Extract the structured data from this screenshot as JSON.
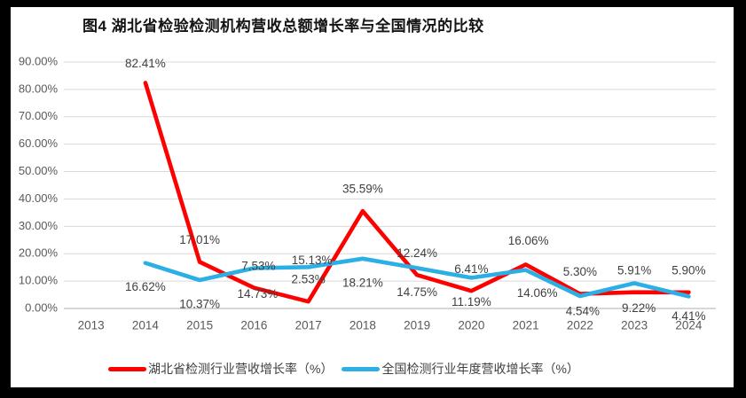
{
  "title": "图4 湖北省检验检测机构营收总额增长率与全国情况的比较",
  "legend": {
    "items": [
      {
        "label": "湖北省检测行业营收增长率（%）",
        "color": "#fe0000"
      },
      {
        "label": "全国检测行业年度营收增长率（%）",
        "color": "#2bafe4"
      }
    ]
  },
  "colors": {
    "hubei_line": "#fe0000",
    "national_line": "#2bafe4",
    "gridline": "#d9d9d9",
    "axis_line": "#bfbfbf",
    "axis_text": "#595959",
    "data_label": "#3f3f3f",
    "title_text": "#141414",
    "frame": "#000000",
    "background": "#ffffff"
  },
  "chart_data": {
    "type": "line",
    "title": "图4 湖北省检验检测机构营收总额增长率与全国情况的比较",
    "categories": [
      "2013",
      "2014",
      "2015",
      "2016",
      "2017",
      "2018",
      "2019",
      "2020",
      "2021",
      "2022",
      "2023",
      "2024"
    ],
    "series": [
      {
        "name": "湖北省检测行业营收增长率（%）",
        "color": "#fe0000",
        "values": [
          null,
          82.41,
          17.01,
          7.53,
          2.53,
          35.59,
          12.24,
          6.41,
          16.06,
          5.3,
          5.91,
          5.9
        ],
        "labels": [
          null,
          "82.41%",
          "17.01%",
          "7.53%",
          "2.53%",
          "35.59%",
          "12.24%",
          "6.41%",
          "16.06%",
          "5.30%",
          "5.91%",
          "5.90%"
        ]
      },
      {
        "name": "全国检测行业年度营收增长率（%）",
        "color": "#2bafe4",
        "values": [
          null,
          16.62,
          10.37,
          14.73,
          15.13,
          18.21,
          14.75,
          11.19,
          14.06,
          4.54,
          9.22,
          4.41
        ],
        "labels": [
          null,
          "16.62%",
          "10.37%",
          "14.73%",
          "15.13%",
          "18.21%",
          "14.75%",
          "11.19%",
          "14.06%",
          "4.54%",
          "9.22%",
          "4.41%"
        ]
      }
    ],
    "xlabel": "",
    "ylabel": "",
    "ylim": [
      0,
      90
    ],
    "y_ticks": {
      "values": [
        0,
        10,
        20,
        30,
        40,
        50,
        60,
        70,
        80,
        90
      ],
      "labels": [
        "0.00%",
        "10.00%",
        "20.00%",
        "30.00%",
        "40.00%",
        "50.00%",
        "60.00%",
        "70.00%",
        "80.00%",
        "90.00%"
      ]
    },
    "grid": true,
    "legend_position": "bottom"
  }
}
